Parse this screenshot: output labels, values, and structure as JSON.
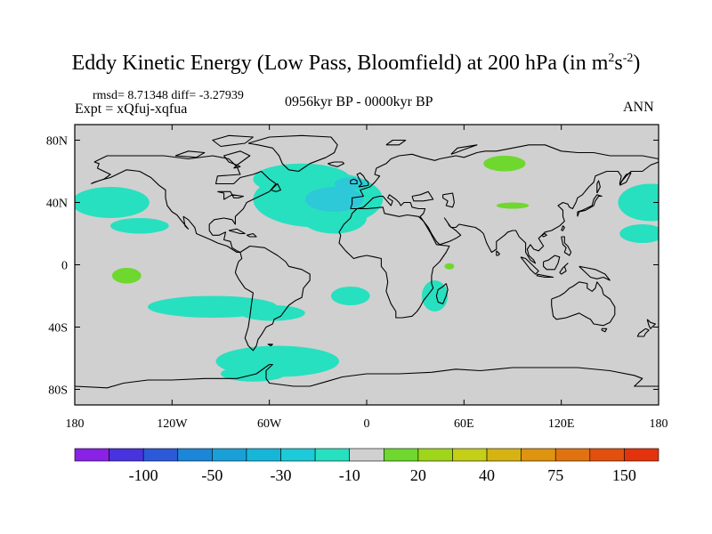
{
  "title": {
    "main": "Eddy Kinetic Energy (Low Pass, Bloomfield) at 200 hPa (in m",
    "sup1": "2",
    "mid": "s",
    "sup2": "-2",
    "end": ")"
  },
  "stats": "rmsd= 8.71348  diff= -3.27939",
  "experiment": "Expt = xQfuj-xqfua",
  "period": "0956kyr BP - 0000kyr BP",
  "season": "ANN",
  "map": {
    "lon_range": [
      -180,
      180
    ],
    "lat_range": [
      -90,
      90
    ],
    "lat_ticks": [
      {
        "value": 80,
        "label": "80N"
      },
      {
        "value": 40,
        "label": "40N"
      },
      {
        "value": 0,
        "label": "0"
      },
      {
        "value": -40,
        "label": "40S"
      },
      {
        "value": -80,
        "label": "80S"
      }
    ],
    "lon_ticks": [
      {
        "value": -180,
        "label": "180"
      },
      {
        "value": -120,
        "label": "120W"
      },
      {
        "value": -60,
        "label": "60W"
      },
      {
        "value": 0,
        "label": "0"
      },
      {
        "value": 60,
        "label": "60E"
      },
      {
        "value": 120,
        "label": "120E"
      },
      {
        "value": 180,
        "label": "180"
      }
    ],
    "background_color": "#d0d0d0",
    "negative_regions": [
      {
        "lon": -158,
        "lat": 40,
        "rlon": 24,
        "rlat": 10,
        "color": "#27e0c0"
      },
      {
        "lon": -140,
        "lat": 25,
        "rlon": 18,
        "rlat": 5,
        "color": "#27e0c0"
      },
      {
        "lon": 175,
        "lat": 40,
        "rlon": 20,
        "rlat": 12,
        "color": "#27e0c0"
      },
      {
        "lon": 170,
        "lat": 20,
        "rlon": 14,
        "rlat": 6,
        "color": "#27e0c0"
      },
      {
        "lon": -30,
        "lat": 42,
        "rlon": 40,
        "rlat": 18,
        "color": "#27e0c0"
      },
      {
        "lon": -40,
        "lat": 55,
        "rlon": 30,
        "rlat": 10,
        "color": "#27e0c0"
      },
      {
        "lon": -20,
        "lat": 30,
        "rlon": 20,
        "rlat": 10,
        "color": "#27e0c0"
      },
      {
        "lon": -95,
        "lat": -27,
        "rlon": 40,
        "rlat": 7,
        "color": "#27e0c0"
      },
      {
        "lon": -58,
        "lat": -31,
        "rlon": 20,
        "rlat": 5,
        "color": "#27e0c0"
      },
      {
        "lon": -10,
        "lat": -20,
        "rlon": 12,
        "rlat": 6,
        "color": "#27e0c0"
      },
      {
        "lon": 42,
        "lat": -20,
        "rlon": 8,
        "rlat": 10,
        "color": "#27e0c0"
      },
      {
        "lon": -55,
        "lat": -62,
        "rlon": 38,
        "rlat": 10,
        "color": "#27e0c0"
      },
      {
        "lon": -70,
        "lat": -70,
        "rlon": 20,
        "rlat": 5,
        "color": "#27e0c0"
      }
    ],
    "darker_regions": [
      {
        "lon": -20,
        "lat": 42,
        "rlon": 18,
        "rlat": 8,
        "color": "#2ec9d8"
      },
      {
        "lon": -10,
        "lat": 52,
        "rlon": 10,
        "rlat": 4,
        "color": "#2ec9d8"
      }
    ],
    "positive_regions": [
      {
        "lon": -148,
        "lat": -7,
        "rlon": 9,
        "rlat": 5,
        "color": "#6ed82e"
      },
      {
        "lon": 85,
        "lat": 65,
        "rlon": 13,
        "rlat": 5,
        "color": "#6ed82e"
      },
      {
        "lon": 90,
        "lat": 38,
        "rlon": 10,
        "rlat": 2,
        "color": "#6ed82e"
      },
      {
        "lon": 51,
        "lat": -1,
        "rlon": 3,
        "rlat": 2,
        "color": "#6ed82e"
      }
    ]
  },
  "colorbar": {
    "colors": [
      "#8a22e6",
      "#4933df",
      "#2c59d7",
      "#1c86d8",
      "#1aa0d8",
      "#16b6d9",
      "#1ccad8",
      "#27e0c0",
      "#d0d0d0",
      "#6ed82e",
      "#9fd51a",
      "#c4cf17",
      "#d6b312",
      "#de9410",
      "#e0730f",
      "#e2500e",
      "#e3330d"
    ],
    "labels": [
      {
        "after_box": 2,
        "text": "-100"
      },
      {
        "after_box": 4,
        "text": "-50"
      },
      {
        "after_box": 6,
        "text": "-30"
      },
      {
        "after_box": 8,
        "text": "-10"
      },
      {
        "after_box": 10,
        "text": "20"
      },
      {
        "after_box": 12,
        "text": "40"
      },
      {
        "after_box": 14,
        "text": "75"
      },
      {
        "after_box": 16,
        "text": "150"
      }
    ]
  }
}
